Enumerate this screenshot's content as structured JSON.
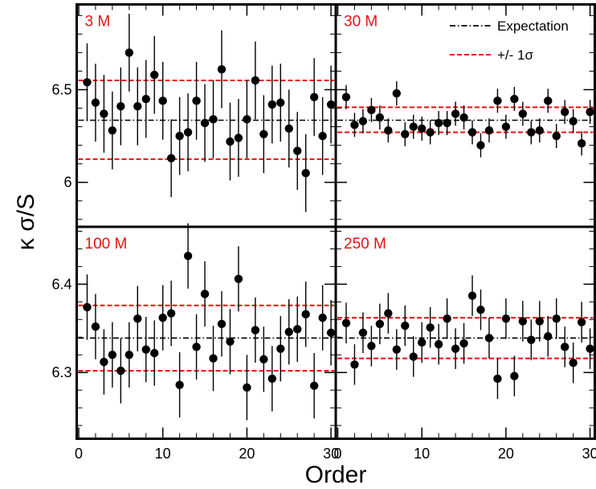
{
  "chart_data": {
    "type": "scatter",
    "xlabel": "Order",
    "ylabel": "κ σ/S",
    "x_ticks": [
      0,
      10,
      20,
      30
    ],
    "xlim": [
      -1.5,
      35
    ],
    "legend": {
      "placement": "top-right",
      "entries": [
        {
          "label": "Expectation",
          "style": "dash-dot",
          "color": "#000000"
        },
        {
          "label": "+/- 1σ",
          "style": "dashed",
          "color": "#e8110f"
        }
      ]
    },
    "colors": {
      "points": "#000000",
      "band": "#e8110f",
      "label": "#e8110f"
    },
    "x": [
      1,
      2,
      3,
      4,
      5,
      6,
      7,
      8,
      9,
      10,
      11,
      12,
      13,
      14,
      15,
      16,
      17,
      18,
      19,
      20,
      21,
      22,
      23,
      24,
      25,
      26,
      27,
      28,
      29,
      30
    ],
    "panels": [
      {
        "label": "3 M",
        "ylim": [
          5.76,
          6.96
        ],
        "y_ticks": [
          6,
          6.5
        ],
        "y_tick_labels": [
          "6",
          "6.5"
        ],
        "expectation": 6.335,
        "band": [
          6.125,
          6.55
        ],
        "values": [
          6.54,
          6.43,
          6.37,
          6.28,
          6.41,
          6.7,
          6.41,
          6.45,
          6.58,
          6.44,
          6.13,
          6.25,
          6.27,
          6.44,
          6.32,
          6.34,
          6.61,
          6.22,
          6.24,
          6.34,
          6.55,
          6.26,
          6.42,
          6.43,
          6.29,
          6.17,
          6.05,
          6.46,
          6.25,
          6.42
        ],
        "errors": [
          0.21,
          0.21,
          0.21,
          0.21,
          0.21,
          0.21,
          0.21,
          0.21,
          0.21,
          0.21,
          0.21,
          0.21,
          0.21,
          0.21,
          0.21,
          0.21,
          0.21,
          0.21,
          0.21,
          0.21,
          0.21,
          0.21,
          0.21,
          0.21,
          0.21,
          0.21,
          0.21,
          0.21,
          0.21,
          0.21
        ]
      },
      {
        "label": "30 M",
        "ylim": [
          5.76,
          6.96
        ],
        "y_ticks": [
          6,
          6.5
        ],
        "y_tick_labels": [
          "",
          ""
        ],
        "expectation": 6.335,
        "band": [
          6.27,
          6.405
        ],
        "values": [
          6.46,
          6.31,
          6.33,
          6.39,
          6.35,
          6.28,
          6.48,
          6.26,
          6.3,
          6.29,
          6.27,
          6.32,
          6.32,
          6.37,
          6.35,
          6.27,
          6.2,
          6.28,
          6.44,
          6.3,
          6.45,
          6.37,
          6.27,
          6.28,
          6.44,
          6.25,
          6.38,
          6.33,
          6.21,
          6.38
        ],
        "errors": [
          0.065,
          0.065,
          0.065,
          0.065,
          0.065,
          0.065,
          0.065,
          0.065,
          0.065,
          0.065,
          0.065,
          0.065,
          0.065,
          0.065,
          0.065,
          0.065,
          0.065,
          0.065,
          0.065,
          0.065,
          0.065,
          0.065,
          0.065,
          0.065,
          0.065,
          0.065,
          0.065,
          0.065,
          0.065,
          0.065
        ]
      },
      {
        "label": "100 M",
        "ylim": [
          6.225,
          6.465
        ],
        "y_ticks": [
          6.3,
          6.4
        ],
        "y_tick_labels": [
          "6.3",
          "6.4"
        ],
        "expectation": 6.339,
        "band": [
          6.302,
          6.376
        ],
        "values": [
          6.374,
          6.352,
          6.312,
          6.32,
          6.302,
          6.32,
          6.361,
          6.326,
          6.322,
          6.362,
          6.367,
          6.286,
          6.432,
          6.329,
          6.389,
          6.316,
          6.355,
          6.335,
          6.406,
          6.283,
          6.348,
          6.315,
          6.293,
          6.327,
          6.346,
          6.349,
          6.366,
          6.285,
          6.362,
          6.345
        ],
        "errors": [
          0.037,
          0.037,
          0.037,
          0.037,
          0.037,
          0.037,
          0.037,
          0.037,
          0.037,
          0.037,
          0.037,
          0.037,
          0.037,
          0.037,
          0.037,
          0.037,
          0.037,
          0.037,
          0.037,
          0.037,
          0.037,
          0.037,
          0.037,
          0.037,
          0.037,
          0.037,
          0.037,
          0.037,
          0.037,
          0.037
        ]
      },
      {
        "label": "250 M",
        "ylim": [
          6.225,
          6.465
        ],
        "y_ticks": [
          6.3,
          6.4
        ],
        "y_tick_labels": [
          "",
          ""
        ],
        "expectation": 6.339,
        "band": [
          6.316,
          6.362
        ],
        "values": [
          6.356,
          6.309,
          6.345,
          6.33,
          6.355,
          6.367,
          6.326,
          6.353,
          6.318,
          6.334,
          6.351,
          6.332,
          6.361,
          6.327,
          6.333,
          6.387,
          6.371,
          6.339,
          6.293,
          6.361,
          6.296,
          6.358,
          6.337,
          6.358,
          6.341,
          6.361,
          6.329,
          6.311,
          6.357,
          6.327
        ],
        "errors": [
          0.023,
          0.023,
          0.023,
          0.023,
          0.023,
          0.023,
          0.023,
          0.023,
          0.023,
          0.023,
          0.023,
          0.023,
          0.023,
          0.023,
          0.023,
          0.023,
          0.023,
          0.023,
          0.023,
          0.023,
          0.023,
          0.023,
          0.023,
          0.023,
          0.023,
          0.023,
          0.023,
          0.023,
          0.023,
          0.023
        ]
      }
    ]
  }
}
